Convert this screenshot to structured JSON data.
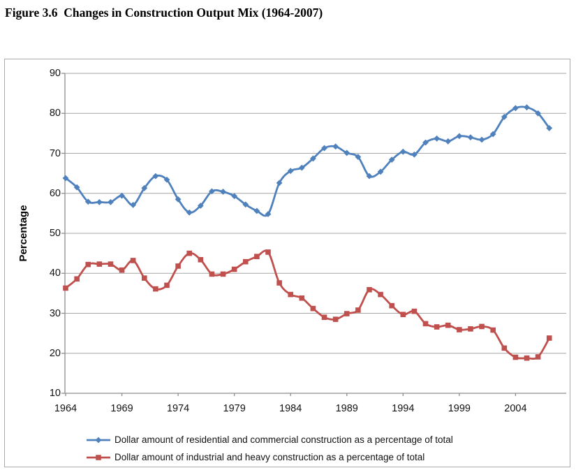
{
  "figure": {
    "title": "Figure 3.6  Changes in Construction Output Mix (1964-2007)"
  },
  "chart_data": {
    "type": "line",
    "title": "Figure 3.6  Changes in Construction Output Mix (1964-2007)",
    "xlabel": "",
    "ylabel": "Percentage",
    "ylim": [
      10,
      90
    ],
    "y_ticks": [
      90,
      80,
      70,
      60,
      50,
      40,
      30,
      20,
      10
    ],
    "x_ticks": [
      1964,
      1969,
      1974,
      1979,
      1984,
      1989,
      1994,
      1999,
      2004
    ],
    "grid": "horizontal",
    "legend_position": "bottom-left",
    "x": [
      1964,
      1965,
      1966,
      1967,
      1968,
      1969,
      1970,
      1971,
      1972,
      1973,
      1974,
      1975,
      1976,
      1977,
      1978,
      1979,
      1980,
      1981,
      1982,
      1983,
      1984,
      1985,
      1986,
      1987,
      1988,
      1989,
      1990,
      1991,
      1992,
      1993,
      1994,
      1995,
      1996,
      1997,
      1998,
      1999,
      2000,
      2001,
      2002,
      2003,
      2004,
      2005,
      2006,
      2007
    ],
    "series": [
      {
        "name": "Dollar amount of residential and commercial construction as a percentage of total",
        "color": "#4F81BD",
        "marker": "diamond",
        "values": [
          63.8,
          61.5,
          57.9,
          57.8,
          57.8,
          59.4,
          57.1,
          61.3,
          64.3,
          63.4,
          58.5,
          55.2,
          56.9,
          60.5,
          60.4,
          59.3,
          57.2,
          55.6,
          54.8,
          62.6,
          65.6,
          66.4,
          68.7,
          71.3,
          71.7,
          70.1,
          69.1,
          64.3,
          65.4,
          68.4,
          70.4,
          69.7,
          72.7,
          73.7,
          73.0,
          74.3,
          74.0,
          73.4,
          74.8,
          79.1,
          81.3,
          81.5,
          80.0,
          76.3
        ]
      },
      {
        "name": "Dollar amount of industrial and heavy construction as a percentage of total",
        "color": "#C0504D",
        "marker": "square",
        "values": [
          36.3,
          38.6,
          42.2,
          42.3,
          42.3,
          40.8,
          43.2,
          38.8,
          36.1,
          37.0,
          41.8,
          45.0,
          43.4,
          39.8,
          39.8,
          41.0,
          42.9,
          44.2,
          45.3,
          37.6,
          34.7,
          33.8,
          31.2,
          29.0,
          28.5,
          29.9,
          30.8,
          35.9,
          34.7,
          31.9,
          29.7,
          30.5,
          27.4,
          26.6,
          27.0,
          25.9,
          26.1,
          26.7,
          25.8,
          21.3,
          19.0,
          18.8,
          19.1,
          23.8
        ]
      }
    ]
  },
  "colors": {
    "gridline": "#a6a6a6",
    "axis": "#8c8c8c",
    "frame_border": "#a8a8a8",
    "text": "#000000"
  }
}
